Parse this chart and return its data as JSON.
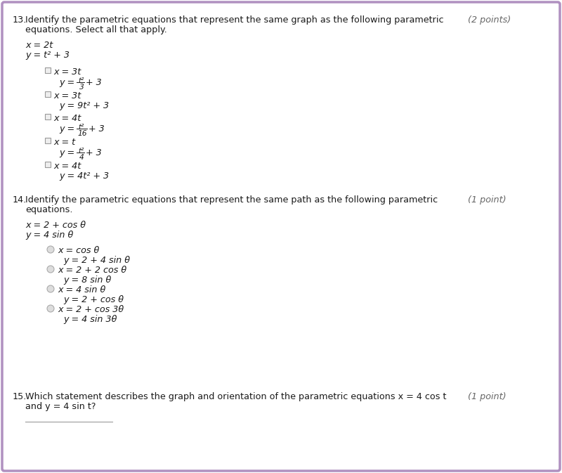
{
  "bg_color": "#ffffff",
  "border_color": "#b090c0",
  "text_color": "#1a1a1a",
  "points_color": "#666666",
  "q13": {
    "number": "13.",
    "question": "Identify the parametric equations that represent the same graph as the following parametric",
    "question2": "equations. Select all that apply.",
    "points": "(2 points)",
    "given_x": "x = 2t",
    "given_y": "y = t² + 3"
  },
  "q14": {
    "number": "14.",
    "question": "Identify the parametric equations that represent the same path as the following parametric",
    "question2": "equations.",
    "points": "(1 point)",
    "given_x": "x = 2 + cos θ",
    "given_y": "y = 4 sin θ",
    "options": [
      {
        "x": "x = cos θ",
        "y": "y = 2 + 4 sin θ"
      },
      {
        "x": "x = 2 + 2 cos θ",
        "y": "y = 8 sin θ"
      },
      {
        "x": "x = 4 sin θ",
        "y": "y = 2 + cos θ"
      },
      {
        "x": "x = 2 + cos 3θ",
        "y": "y = 4 sin 3θ"
      }
    ]
  },
  "q15": {
    "number": "15.",
    "question": "Which statement describes the graph and orientation of the parametric equations x = 4 cos t",
    "question2": "and y = 4 sin t?",
    "points": "(1 point)"
  }
}
